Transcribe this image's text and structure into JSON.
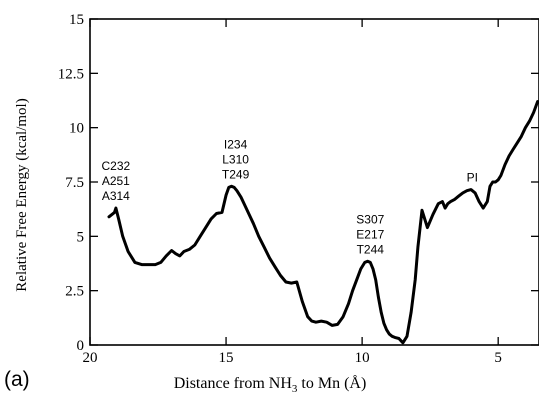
{
  "chart_data": {
    "type": "line",
    "panel_label": "(a)",
    "xlabel_prefix": "Distance from NH",
    "xlabel_sub": "3",
    "xlabel_suffix": " to Mn (Å)",
    "ylabel": "Relative Free Energy (kcal/mol)",
    "xlim": [
      20,
      3.5
    ],
    "ylim": [
      0,
      15
    ],
    "x_ticks": [
      20,
      15,
      10,
      5
    ],
    "x_tick_labels": [
      "20",
      "15",
      "10",
      "5"
    ],
    "y_ticks": [
      0,
      2.5,
      5,
      7.5,
      10,
      12.5,
      15
    ],
    "y_tick_labels": [
      "0",
      "2.5",
      "5",
      "7.5",
      "10",
      "12.5",
      "15"
    ],
    "grid": false,
    "line_color": "#000000",
    "series": [
      {
        "x": [
          19.3,
          19.1,
          19.05,
          18.95,
          18.8,
          18.6,
          18.35,
          18.1,
          17.85,
          17.6,
          17.4,
          17.2,
          17.0,
          16.85,
          16.7,
          16.55,
          16.35,
          16.15,
          15.95,
          15.75,
          15.55,
          15.35,
          15.15,
          15.0,
          14.9,
          14.8,
          14.7,
          14.6,
          14.45,
          14.3,
          14.15,
          14.0,
          13.8,
          13.6,
          13.4,
          13.2,
          13.0,
          12.8,
          12.6,
          12.4,
          12.2,
          12.0,
          11.85,
          11.7,
          11.5,
          11.3,
          11.1,
          10.9,
          10.7,
          10.5,
          10.35,
          10.2,
          10.05,
          9.9,
          9.8,
          9.7,
          9.6,
          9.5,
          9.4,
          9.3,
          9.2,
          9.1,
          9.0,
          8.9,
          8.8,
          8.65,
          8.5,
          8.35,
          8.2,
          8.05,
          7.95,
          7.8,
          7.6,
          7.4,
          7.2,
          7.05,
          6.95,
          6.85,
          6.75,
          6.6,
          6.45,
          6.3,
          6.15,
          6.0,
          5.85,
          5.7,
          5.55,
          5.4,
          5.3,
          5.2,
          5.1,
          5.0,
          4.9,
          4.75,
          4.6,
          4.45,
          4.3,
          4.15,
          4.0,
          3.85,
          3.7,
          3.55
        ],
        "y": [
          5.9,
          6.1,
          6.3,
          5.8,
          5.0,
          4.3,
          3.8,
          3.7,
          3.7,
          3.7,
          3.8,
          4.1,
          4.35,
          4.2,
          4.1,
          4.3,
          4.4,
          4.6,
          5.0,
          5.4,
          5.8,
          6.05,
          6.1,
          6.9,
          7.25,
          7.3,
          7.25,
          7.1,
          6.8,
          6.4,
          6.0,
          5.6,
          5.0,
          4.5,
          4.0,
          3.6,
          3.2,
          2.9,
          2.85,
          2.9,
          2.0,
          1.3,
          1.1,
          1.05,
          1.1,
          1.05,
          0.9,
          0.95,
          1.3,
          1.9,
          2.5,
          3.0,
          3.5,
          3.8,
          3.85,
          3.8,
          3.5,
          3.0,
          2.2,
          1.5,
          1.0,
          0.7,
          0.5,
          0.4,
          0.35,
          0.3,
          0.1,
          0.4,
          1.5,
          3.0,
          4.5,
          6.2,
          5.4,
          6.0,
          6.5,
          6.6,
          6.3,
          6.5,
          6.6,
          6.7,
          6.85,
          7.0,
          7.1,
          7.15,
          7.0,
          6.6,
          6.3,
          6.6,
          7.3,
          7.5,
          7.5,
          7.6,
          7.8,
          8.3,
          8.7,
          9.0,
          9.3,
          9.6,
          10.0,
          10.3,
          10.7,
          11.2
        ]
      }
    ],
    "annotations": [
      {
        "lines": [
          "C232",
          "A251",
          "A314"
        ],
        "x": 19.05,
        "y": 6.3
      },
      {
        "lines": [
          "I234",
          "L310",
          "T249"
        ],
        "x": 14.65,
        "y": 7.3
      },
      {
        "lines": [
          "S307",
          "E217",
          "T244"
        ],
        "x": 9.7,
        "y": 3.85
      },
      {
        "lines": [
          "PI"
        ],
        "x": 5.95,
        "y": 7.15
      }
    ]
  }
}
